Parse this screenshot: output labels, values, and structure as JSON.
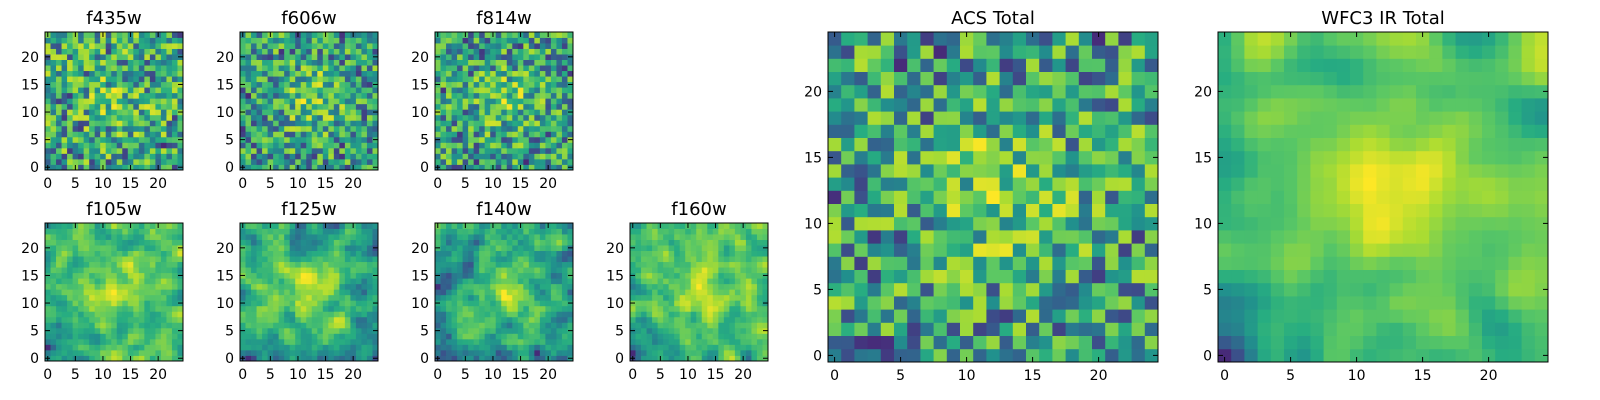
{
  "chart_data": [
    {
      "type": "heatmap",
      "title": "f435w",
      "grid_size": 25,
      "x_ticks": [
        "0",
        "5",
        "10",
        "15",
        "20"
      ],
      "y_ticks": [
        "0",
        "5",
        "10",
        "15",
        "20"
      ],
      "colormap": "viridis",
      "xlim": [
        0,
        25
      ],
      "ylim": [
        0,
        25
      ],
      "seed": 11,
      "blob": 0.2,
      "smooth": 0,
      "corner": 0
    },
    {
      "type": "heatmap",
      "title": "f606w",
      "grid_size": 25,
      "x_ticks": [
        "0",
        "5",
        "10",
        "15",
        "20"
      ],
      "y_ticks": [
        "0",
        "5",
        "10",
        "15",
        "20"
      ],
      "colormap": "viridis",
      "xlim": [
        0,
        25
      ],
      "ylim": [
        0,
        25
      ],
      "seed": 23,
      "blob": 0.35,
      "smooth": 0,
      "corner": 0
    },
    {
      "type": "heatmap",
      "title": "f814w",
      "grid_size": 25,
      "x_ticks": [
        "0",
        "5",
        "10",
        "15",
        "20"
      ],
      "y_ticks": [
        "0",
        "5",
        "10",
        "15",
        "20"
      ],
      "colormap": "viridis",
      "xlim": [
        0,
        25
      ],
      "ylim": [
        0,
        25
      ],
      "seed": 37,
      "blob": 0.3,
      "smooth": 0,
      "corner": 0
    },
    {
      "type": "heatmap",
      "title": "f105w",
      "grid_size": 25,
      "x_ticks": [
        "0",
        "5",
        "10",
        "15",
        "20"
      ],
      "y_ticks": [
        "0",
        "5",
        "10",
        "15",
        "20"
      ],
      "colormap": "viridis",
      "xlim": [
        0,
        25
      ],
      "ylim": [
        0,
        25
      ],
      "seed": 41,
      "blob": 0.45,
      "smooth": 1,
      "corner": 0.3
    },
    {
      "type": "heatmap",
      "title": "f125w",
      "grid_size": 25,
      "x_ticks": [
        "0",
        "5",
        "10",
        "15",
        "20"
      ],
      "y_ticks": [
        "0",
        "5",
        "10",
        "15",
        "20"
      ],
      "colormap": "viridis",
      "xlim": [
        0,
        25
      ],
      "ylim": [
        0,
        25
      ],
      "seed": 53,
      "blob": 0.45,
      "smooth": 1,
      "corner": 0.3
    },
    {
      "type": "heatmap",
      "title": "f140w",
      "grid_size": 25,
      "x_ticks": [
        "0",
        "5",
        "10",
        "15",
        "20"
      ],
      "y_ticks": [
        "0",
        "5",
        "10",
        "15",
        "20"
      ],
      "colormap": "viridis",
      "xlim": [
        0,
        25
      ],
      "ylim": [
        0,
        25
      ],
      "seed": 67,
      "blob": 0.45,
      "smooth": 1,
      "corner": 0.2
    },
    {
      "type": "heatmap",
      "title": "f160w",
      "grid_size": 25,
      "x_ticks": [
        "0",
        "5",
        "10",
        "15",
        "20"
      ],
      "y_ticks": [
        "0",
        "5",
        "10",
        "15",
        "20"
      ],
      "colormap": "viridis",
      "xlim": [
        0,
        25
      ],
      "ylim": [
        0,
        25
      ],
      "seed": 79,
      "blob": 0.45,
      "smooth": 1,
      "corner": 0.4
    },
    {
      "type": "heatmap",
      "title": "ACS Total",
      "grid_size": 25,
      "x_ticks": [
        "0",
        "5",
        "10",
        "15",
        "20"
      ],
      "y_ticks": [
        "0",
        "5",
        "10",
        "15",
        "20"
      ],
      "colormap": "viridis",
      "xlim": [
        0,
        25
      ],
      "ylim": [
        0,
        25
      ],
      "seed": 97,
      "blob": 0.3,
      "smooth": 0,
      "corner": 0
    },
    {
      "type": "heatmap",
      "title": "WFC3 IR Total",
      "grid_size": 25,
      "x_ticks": [
        "0",
        "5",
        "10",
        "15",
        "20"
      ],
      "y_ticks": [
        "0",
        "5",
        "10",
        "15",
        "20"
      ],
      "colormap": "viridis",
      "xlim": [
        0,
        25
      ],
      "ylim": [
        0,
        25
      ],
      "seed": 113,
      "blob": 0.6,
      "smooth": 2,
      "corner": 0.9
    }
  ]
}
